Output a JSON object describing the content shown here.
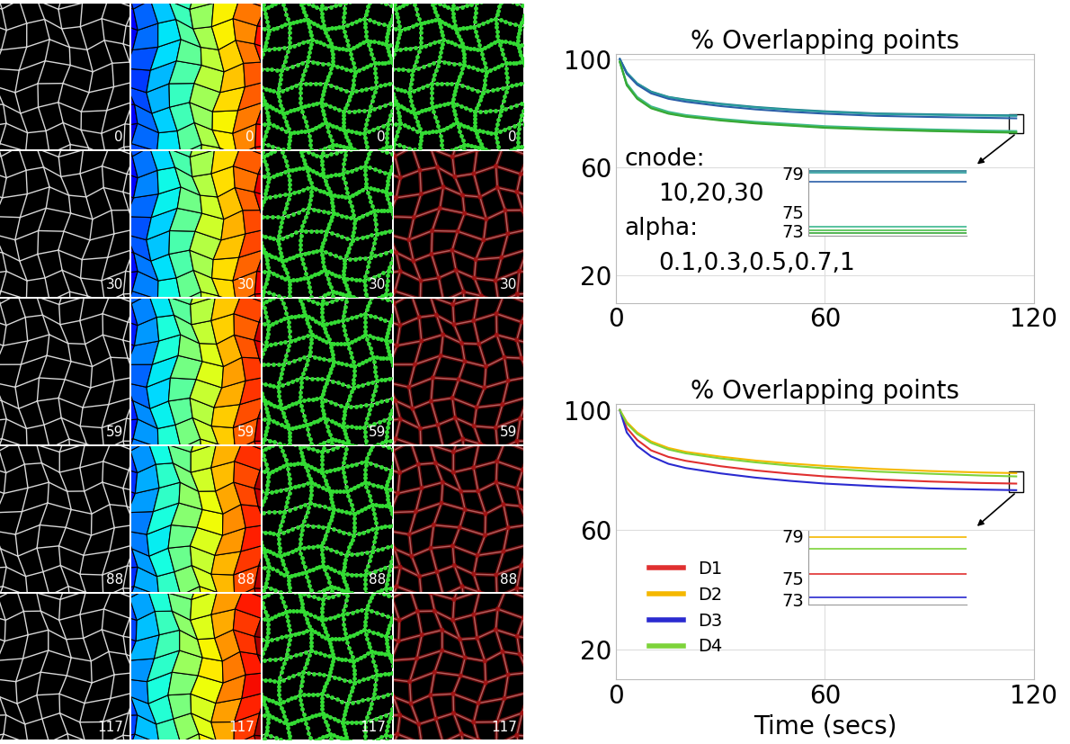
{
  "image_grid": {
    "frames": [
      0,
      30,
      59,
      88,
      117
    ]
  },
  "chart_data": [
    {
      "type": "line",
      "title": "% Overlapping points",
      "x": [
        1,
        3,
        6,
        10,
        15,
        20,
        30,
        40,
        50,
        60,
        75,
        90,
        105,
        115
      ],
      "xlim": [
        0,
        120
      ],
      "xticks": [
        0,
        60,
        120
      ],
      "ylim": [
        10,
        102
      ],
      "yticks": [
        20,
        60,
        100
      ],
      "grid": true,
      "annotations": [
        "cnode:",
        "10,20,30",
        "alpha:",
        "0.1,0.3,0.5,0.7,1"
      ],
      "series": [
        {
          "color": "#1f7a8c",
          "values": [
            100,
            95,
            91,
            88,
            86,
            85,
            83.5,
            82.3,
            81.4,
            80.7,
            79.9,
            79.6,
            79.3,
            79.2
          ]
        },
        {
          "color": "#2a9d9d",
          "values": [
            100,
            95,
            91,
            87.8,
            85.9,
            84.8,
            83.3,
            82.1,
            81.2,
            80.5,
            79.7,
            79.4,
            79.1,
            79.0
          ]
        },
        {
          "color": "#2b5fa8",
          "values": [
            100,
            94.5,
            90.5,
            87.3,
            85.3,
            84.2,
            82.6,
            81.4,
            80.5,
            79.8,
            79.0,
            78.6,
            78.3,
            78.1
          ]
        },
        {
          "color": "#3cb88f",
          "values": [
            99,
            91,
            86,
            82.5,
            80.5,
            79.3,
            77.9,
            76.8,
            76,
            75.2,
            74.5,
            74,
            73.6,
            73.4
          ]
        },
        {
          "color": "#4dbf4d",
          "values": [
            99,
            90.5,
            85.5,
            82,
            80,
            78.9,
            77.5,
            76.4,
            75.6,
            74.8,
            74.1,
            73.6,
            73.2,
            73.0
          ]
        },
        {
          "color": "#36a836",
          "values": [
            99,
            90.3,
            85.3,
            81.8,
            79.8,
            78.7,
            77.3,
            76.2,
            75.4,
            74.6,
            73.9,
            73.4,
            73.0,
            72.8
          ]
        }
      ],
      "inset": {
        "ylim": [
          72.5,
          79.5
        ],
        "yticks": [
          73,
          75,
          79
        ],
        "tick_labels": "y"
      }
    },
    {
      "type": "line",
      "title": "% Overlapping points",
      "xlabel": "Time (secs)",
      "x": [
        1,
        3,
        6,
        10,
        15,
        20,
        30,
        40,
        50,
        60,
        75,
        90,
        105,
        115
      ],
      "xlim": [
        0,
        120
      ],
      "xticks": [
        0,
        60,
        120
      ],
      "ylim": [
        10,
        102
      ],
      "yticks": [
        20,
        60,
        100
      ],
      "grid": true,
      "legend": "lower left",
      "series": [
        {
          "name": "D1",
          "color": "#e03030",
          "values": [
            100,
            94,
            90,
            86.5,
            84.3,
            83,
            81.2,
            79.8,
            78.7,
            77.8,
            76.8,
            76.1,
            75.6,
            75.4
          ]
        },
        {
          "name": "D2",
          "color": "#f5b800",
          "values": [
            100,
            96,
            92.5,
            89.5,
            87.3,
            86,
            84.4,
            83.1,
            82.1,
            81.3,
            80.3,
            79.6,
            79.1,
            78.9
          ]
        },
        {
          "name": "D3",
          "color": "#2a2ad0",
          "values": [
            100,
            92.5,
            88,
            84.5,
            82,
            80.6,
            78.8,
            77.4,
            76.3,
            75.4,
            74.5,
            73.8,
            73.4,
            73.2
          ]
        },
        {
          "name": "D4",
          "color": "#7dd33a",
          "values": [
            100,
            95.5,
            92,
            89,
            86.8,
            85.5,
            83.8,
            82.5,
            81.4,
            80.5,
            79.4,
            78.7,
            78.1,
            77.8
          ]
        }
      ],
      "inset": {
        "ylim": [
          72.5,
          79.5
        ],
        "yticks": [
          73,
          75,
          79
        ],
        "tick_labels": "y"
      }
    }
  ]
}
